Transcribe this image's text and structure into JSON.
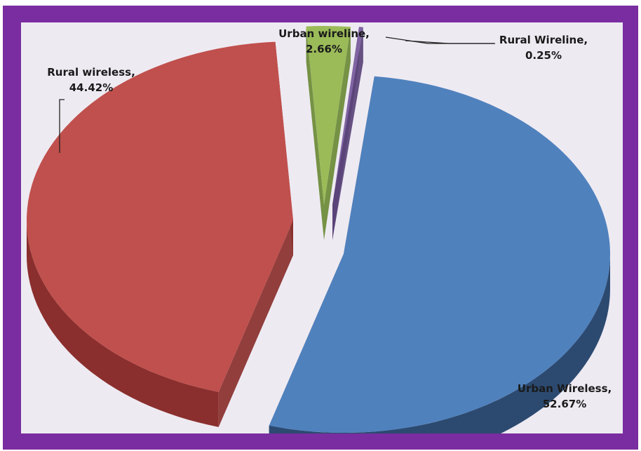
{
  "chart_data": {
    "type": "pie",
    "title": "",
    "slices": [
      {
        "name": "Urban Wireless",
        "value": 52.67,
        "label_name": "Urban Wireless,",
        "label_value": "52.67%",
        "color": "#4f81bd",
        "side_color": "#2c4a70"
      },
      {
        "name": "Rural wireless",
        "value": 44.42,
        "label_name": "Rural wireless,",
        "label_value": "44.42%",
        "color": "#c0504d",
        "side_color": "#8a2f2d"
      },
      {
        "name": "Urban wireline",
        "value": 2.66,
        "label_name": "Urban wireline,",
        "label_value": "2.66%",
        "color": "#9bbb59",
        "side_color": "#6a8a36"
      },
      {
        "name": "Rural Wireline",
        "value": 0.25,
        "label_name": "Rural Wireline,",
        "label_value": "0.25%",
        "color": "#8064a2",
        "side_color": "#5a4378"
      }
    ],
    "style": "3d-exploded",
    "legend": "none"
  },
  "colors": {
    "border": "#7a2da0",
    "plot_background": "#eeeaf2"
  }
}
